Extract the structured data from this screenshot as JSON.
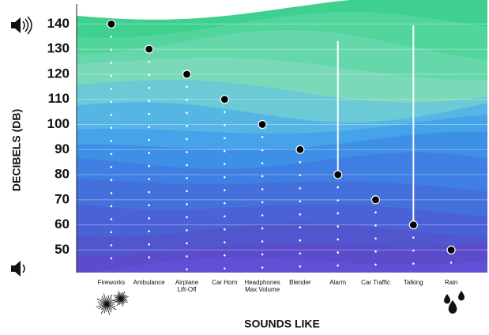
{
  "chart_data": {
    "type": "dot",
    "y_label": "DECIBELS (DB)",
    "x_label": "SOUNDS LIKE",
    "categories": [
      "Fireworks",
      "Ambulance",
      "Airplane\nLift-Off",
      "Car Horn",
      "Headphones\nMax Volume",
      "Blender",
      "Alarm",
      "Car Traffic",
      "Talking",
      "Rain"
    ],
    "values": [
      140,
      130,
      120,
      110,
      100,
      90,
      80,
      70,
      60,
      50
    ],
    "color": "#000000",
    "ylim": [
      41,
      148
    ],
    "yticks": [
      50,
      60,
      70,
      80,
      90,
      100,
      110,
      120,
      130,
      140
    ],
    "grid": true
  }
}
